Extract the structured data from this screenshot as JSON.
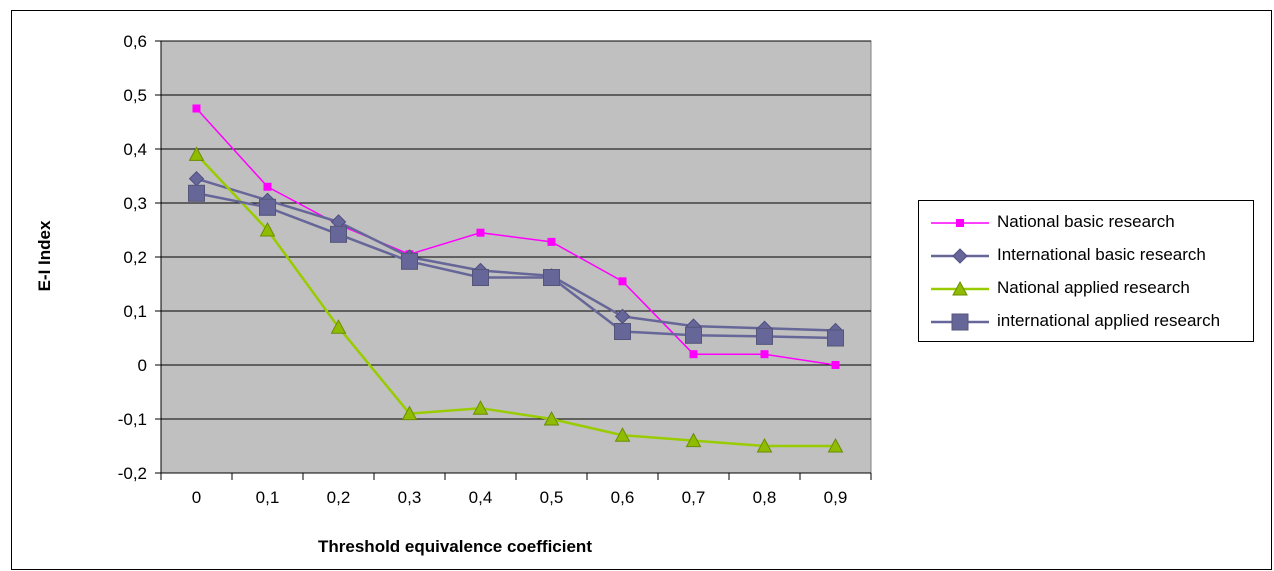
{
  "chart_data": {
    "type": "line",
    "title": "",
    "xlabel": "Threshold equivalence coefficient",
    "ylabel": "E-I Index",
    "categories": [
      "0",
      "0,1",
      "0,2",
      "0,3",
      "0,4",
      "0,5",
      "0,6",
      "0,7",
      "0,8",
      "0,9"
    ],
    "y_ticks": [
      "-0,2",
      "-0,1",
      "0",
      "0,1",
      "0,2",
      "0,3",
      "0,4",
      "0,5",
      "0,6"
    ],
    "ylim": [
      -0.2,
      0.6
    ],
    "grid": true,
    "legend_position": "right",
    "plot_background": "#c0c0c0",
    "series": [
      {
        "name": "National basic research",
        "color": "#ff00ff",
        "marker": "square-small",
        "values": [
          0.475,
          0.33,
          0.26,
          0.205,
          0.245,
          0.228,
          0.155,
          0.02,
          0.02,
          0.0
        ]
      },
      {
        "name": "International basic research",
        "color": "#666699",
        "marker": "diamond",
        "values": [
          0.345,
          0.305,
          0.265,
          0.2,
          0.175,
          0.165,
          0.09,
          0.072,
          0.068,
          0.064
        ]
      },
      {
        "name": "National applied research",
        "color": "#99cc00",
        "marker": "triangle",
        "values": [
          0.39,
          0.25,
          0.07,
          -0.09,
          -0.08,
          -0.1,
          -0.13,
          -0.14,
          -0.15,
          -0.15
        ]
      },
      {
        "name": "international applied research",
        "color": "#666699",
        "marker": "square-large",
        "values": [
          0.318,
          0.292,
          0.242,
          0.192,
          0.162,
          0.162,
          0.062,
          0.055,
          0.053,
          0.05
        ]
      }
    ]
  }
}
